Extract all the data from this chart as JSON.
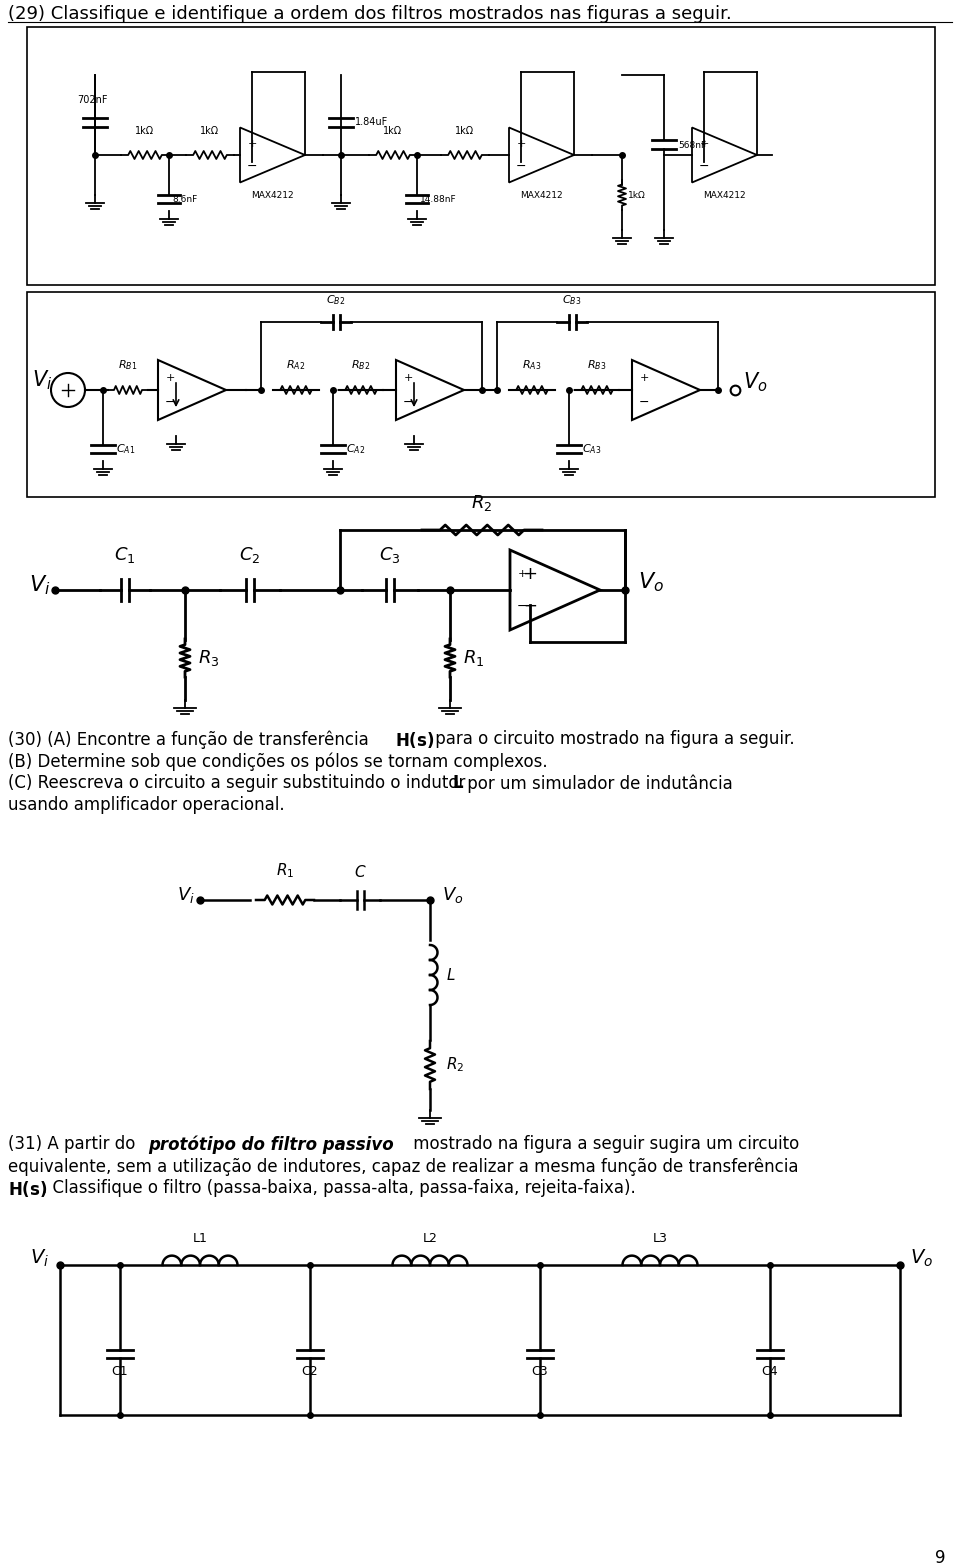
{
  "title_29": "(29) Classifique e identifique a ordem dos filtros mostrados nas figuras a seguir.",
  "page_num": "9",
  "bg_color": "#ffffff",
  "text_color": "#000000",
  "line_color": "#000000",
  "text_30_a": "(30) (A) Encontre a função de transferência ",
  "text_30_Hs": "H(s)",
  "text_30_a2": " para o circuito mostrado na figura a seguir.",
  "text_30_b": "(B) Determine sob que condições os pólos se tornam complexos.",
  "text_30_c1": "(C) Reescreva o circuito a seguir substituindo o indutor ",
  "text_30_L": "L",
  "text_30_c2": " por um simulador de induância",
  "text_30_c3": "usando amplificador operacional.",
  "text_31_a": "(31) A partir do ",
  "text_31_b": "protótipo do filtro passivo",
  "text_31_c": " mostrado na figura a seguir sugira um circuito",
  "text_31_d": "equivalente, sem a utilização de indutores, capaz de realizar a mesma função de transferência",
  "text_31_e1": "H(s)",
  "text_31_e2": ". Classifique o filtro (passa-baixa, passa-alta, passa-faixa, rejeita-faixa)."
}
